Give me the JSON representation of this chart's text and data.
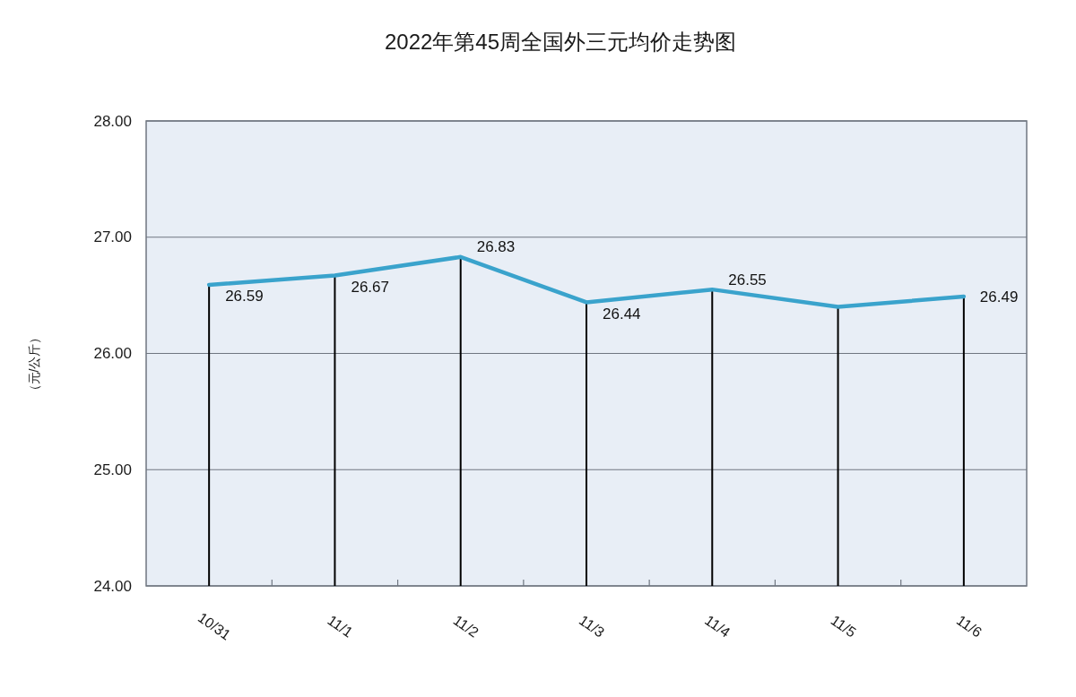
{
  "chart_data": {
    "type": "line",
    "title": "2022年第45周全国外三元均价走势图",
    "ylabel": "（元/公斤）",
    "categories": [
      "10/31",
      "11/1",
      "11/2",
      "11/3",
      "11/4",
      "11/5",
      "11/6"
    ],
    "series": [
      {
        "type": "bar",
        "color": "#000000",
        "values": [
          26.59,
          26.67,
          26.83,
          26.44,
          26.55,
          26.4,
          26.49
        ]
      },
      {
        "color": "#3aa3cc",
        "values": [
          26.59,
          26.67,
          26.83,
          26.44,
          26.55,
          26.4,
          26.49
        ],
        "value_labels": [
          "26.59",
          "26.67",
          "26.83",
          "26.44",
          "26.55",
          null,
          "26.49"
        ]
      }
    ],
    "ylim": [
      24,
      28
    ],
    "yticks": [
      {
        "value": 24,
        "label": "24.00"
      },
      {
        "value": 25,
        "label": "25.00"
      },
      {
        "value": 26,
        "label": "26.00"
      },
      {
        "value": 27,
        "label": "27.00"
      },
      {
        "value": 28,
        "label": "28.00"
      }
    ],
    "grid": "y"
  }
}
